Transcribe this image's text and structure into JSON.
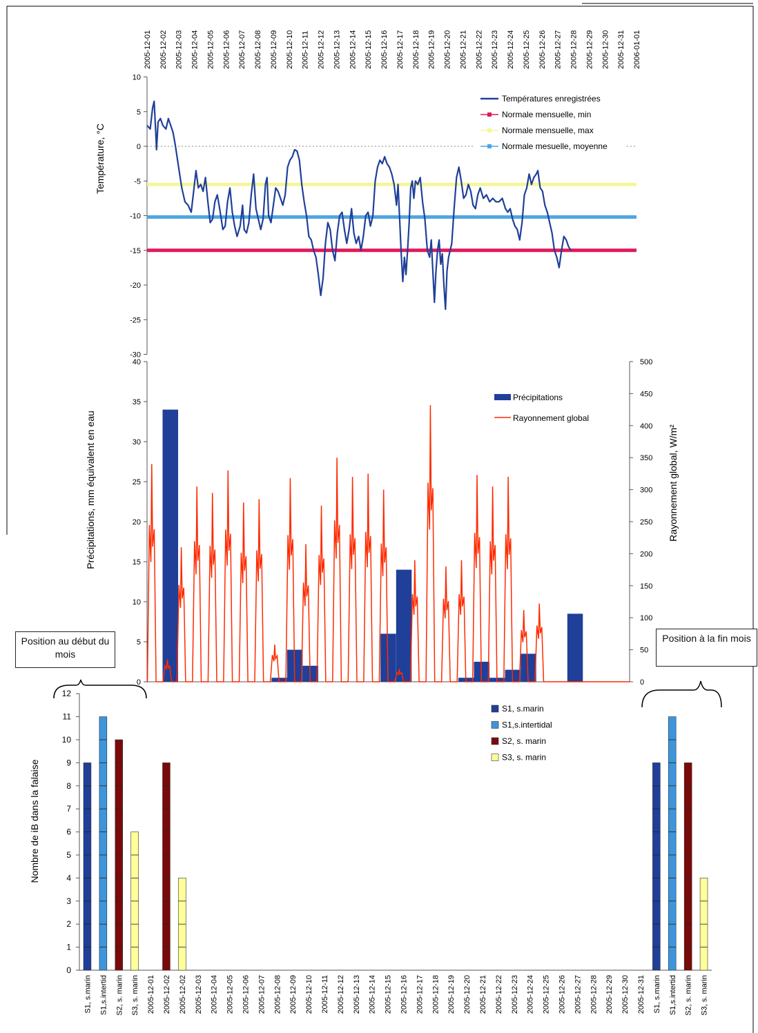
{
  "dates": [
    "2005-12-01",
    "2005-12-02",
    "2005-12-03",
    "2005-12-04",
    "2005-12-05",
    "2005-12-06",
    "2005-12-07",
    "2005-12-08",
    "2005-12-09",
    "2005-12-10",
    "2005-12-11",
    "2005-12-12",
    "2005-12-13",
    "2005-12-14",
    "2005-12-15",
    "2005-12-16",
    "2005-12-17",
    "2005-12-18",
    "2005-12-19",
    "2005-12-20",
    "2005-12-21",
    "2005-12-22",
    "2005-12-23",
    "2005-12-24",
    "2005-12-25",
    "2005-12-26",
    "2005-12-27",
    "2005-12-28",
    "2005-12-29",
    "2005-12-30",
    "2005-12-31",
    "2006-01-01"
  ],
  "callouts": {
    "start": "Position au début du mois",
    "end": "Position à la fin mois"
  },
  "chart_data": [
    {
      "type": "line",
      "ylabel": "Température, °C",
      "ylim": [
        -30,
        10
      ],
      "yticks": [
        10,
        5,
        0,
        -5,
        -10,
        -15,
        -20,
        -25,
        -30
      ],
      "legend_position": "top-right",
      "series": [
        {
          "name": "Températures enregistrées",
          "color": "#1f3f99",
          "points": [
            [
              0.0,
              3.0
            ],
            [
              0.2,
              2.5
            ],
            [
              0.35,
              5.5
            ],
            [
              0.45,
              6.5
            ],
            [
              0.55,
              2.0
            ],
            [
              0.6,
              -0.5
            ],
            [
              0.7,
              3.5
            ],
            [
              0.85,
              4.0
            ],
            [
              1.0,
              3.0
            ],
            [
              1.2,
              2.5
            ],
            [
              1.35,
              4.0
            ],
            [
              1.5,
              3.0
            ],
            [
              1.65,
              2.0
            ],
            [
              1.8,
              0.0
            ],
            [
              2.0,
              -3.0
            ],
            [
              2.2,
              -6.0
            ],
            [
              2.4,
              -8.0
            ],
            [
              2.6,
              -8.5
            ],
            [
              2.8,
              -9.5
            ],
            [
              2.95,
              -6.5
            ],
            [
              3.1,
              -3.5
            ],
            [
              3.25,
              -6.0
            ],
            [
              3.4,
              -5.5
            ],
            [
              3.55,
              -6.5
            ],
            [
              3.7,
              -4.5
            ],
            [
              3.85,
              -8.0
            ],
            [
              4.0,
              -11.0
            ],
            [
              4.15,
              -10.5
            ],
            [
              4.3,
              -8.0
            ],
            [
              4.45,
              -7.0
            ],
            [
              4.6,
              -9.0
            ],
            [
              4.8,
              -12.0
            ],
            [
              4.95,
              -11.5
            ],
            [
              5.1,
              -8.0
            ],
            [
              5.25,
              -6.0
            ],
            [
              5.4,
              -9.5
            ],
            [
              5.55,
              -11.5
            ],
            [
              5.7,
              -13.0
            ],
            [
              5.9,
              -11.5
            ],
            [
              6.05,
              -8.5
            ],
            [
              6.15,
              -12.0
            ],
            [
              6.3,
              -12.5
            ],
            [
              6.45,
              -11.0
            ],
            [
              6.6,
              -7.0
            ],
            [
              6.75,
              -4.0
            ],
            [
              6.9,
              -9.0
            ],
            [
              7.05,
              -10.5
            ],
            [
              7.2,
              -12.0
            ],
            [
              7.35,
              -10.5
            ],
            [
              7.5,
              -5.5
            ],
            [
              7.6,
              -4.5
            ],
            [
              7.7,
              -10.0
            ],
            [
              7.85,
              -11.0
            ],
            [
              8.0,
              -8.5
            ],
            [
              8.15,
              -6.0
            ],
            [
              8.3,
              -6.5
            ],
            [
              8.45,
              -7.5
            ],
            [
              8.6,
              -8.5
            ],
            [
              8.75,
              -7.0
            ],
            [
              8.9,
              -3.0
            ],
            [
              9.05,
              -2.0
            ],
            [
              9.2,
              -1.5
            ],
            [
              9.35,
              -0.5
            ],
            [
              9.5,
              -0.7
            ],
            [
              9.65,
              -2.0
            ],
            [
              9.8,
              -5.5
            ],
            [
              9.95,
              -8.0
            ],
            [
              10.1,
              -10.0
            ],
            [
              10.25,
              -13.0
            ],
            [
              10.4,
              -13.5
            ],
            [
              10.55,
              -15.0
            ],
            [
              10.7,
              -16.0
            ],
            [
              10.85,
              -18.5
            ],
            [
              11.0,
              -21.5
            ],
            [
              11.15,
              -19.0
            ],
            [
              11.3,
              -14.0
            ],
            [
              11.45,
              -11.0
            ],
            [
              11.6,
              -12.0
            ],
            [
              11.75,
              -15.0
            ],
            [
              11.9,
              -16.5
            ],
            [
              12.05,
              -12.5
            ],
            [
              12.2,
              -10.0
            ],
            [
              12.35,
              -9.5
            ],
            [
              12.5,
              -12.0
            ],
            [
              12.65,
              -14.0
            ],
            [
              12.8,
              -12.0
            ],
            [
              12.95,
              -9.0
            ],
            [
              13.1,
              -12.5
            ],
            [
              13.25,
              -14.0
            ],
            [
              13.4,
              -13.0
            ],
            [
              13.55,
              -15.0
            ],
            [
              13.7,
              -13.0
            ],
            [
              13.85,
              -10.0
            ],
            [
              14.0,
              -9.5
            ],
            [
              14.15,
              -11.5
            ],
            [
              14.3,
              -10.0
            ],
            [
              14.45,
              -5.0
            ],
            [
              14.6,
              -3.0
            ],
            [
              14.75,
              -2.0
            ],
            [
              14.9,
              -2.5
            ],
            [
              15.05,
              -1.5
            ],
            [
              15.2,
              -2.5
            ],
            [
              15.35,
              -3.0
            ],
            [
              15.5,
              -4.0
            ],
            [
              15.65,
              -5.5
            ],
            [
              15.8,
              -8.5
            ],
            [
              15.9,
              -5.5
            ],
            [
              16.0,
              -10.5
            ],
            [
              16.1,
              -15.5
            ],
            [
              16.2,
              -19.5
            ],
            [
              16.3,
              -16.0
            ],
            [
              16.4,
              -18.5
            ],
            [
              16.5,
              -15.0
            ],
            [
              16.6,
              -11.0
            ],
            [
              16.7,
              -6.0
            ],
            [
              16.8,
              -5.0
            ],
            [
              16.9,
              -7.5
            ],
            [
              17.0,
              -5.0
            ],
            [
              17.15,
              -5.5
            ],
            [
              17.3,
              -4.5
            ],
            [
              17.45,
              -8.0
            ],
            [
              17.6,
              -10.5
            ],
            [
              17.75,
              -15.0
            ],
            [
              17.9,
              -16.0
            ],
            [
              18.0,
              -13.5
            ],
            [
              18.1,
              -18.0
            ],
            [
              18.2,
              -22.5
            ],
            [
              18.3,
              -18.0
            ],
            [
              18.4,
              -15.0
            ],
            [
              18.5,
              -13.5
            ],
            [
              18.6,
              -17.0
            ],
            [
              18.7,
              -15.5
            ],
            [
              18.8,
              -20.0
            ],
            [
              18.9,
              -23.5
            ],
            [
              19.0,
              -18.0
            ],
            [
              19.1,
              -16.0
            ],
            [
              19.2,
              -15.0
            ],
            [
              19.3,
              -14.0
            ],
            [
              19.45,
              -9.0
            ],
            [
              19.6,
              -4.5
            ],
            [
              19.75,
              -3.0
            ],
            [
              19.9,
              -5.0
            ],
            [
              20.05,
              -7.5
            ],
            [
              20.2,
              -7.0
            ],
            [
              20.35,
              -5.5
            ],
            [
              20.5,
              -6.5
            ],
            [
              20.65,
              -8.5
            ],
            [
              20.8,
              -9.0
            ],
            [
              20.95,
              -7.0
            ],
            [
              21.1,
              -6.0
            ],
            [
              21.3,
              -7.5
            ],
            [
              21.5,
              -7.0
            ],
            [
              21.7,
              -8.0
            ],
            [
              21.9,
              -7.5
            ],
            [
              22.1,
              -8.0
            ],
            [
              22.3,
              -8.0
            ],
            [
              22.5,
              -7.5
            ],
            [
              22.7,
              -9.0
            ],
            [
              22.85,
              -9.5
            ],
            [
              23.0,
              -9.0
            ],
            [
              23.15,
              -10.5
            ],
            [
              23.3,
              -11.5
            ],
            [
              23.45,
              -12.0
            ],
            [
              23.6,
              -13.5
            ],
            [
              23.75,
              -11.0
            ],
            [
              23.9,
              -7.0
            ],
            [
              24.05,
              -6.0
            ],
            [
              24.2,
              -4.0
            ],
            [
              24.35,
              -5.5
            ],
            [
              24.5,
              -4.5
            ],
            [
              24.65,
              -4.0
            ],
            [
              24.75,
              -3.5
            ],
            [
              24.9,
              -6.0
            ],
            [
              25.05,
              -6.5
            ],
            [
              25.2,
              -8.5
            ],
            [
              25.35,
              -9.5
            ],
            [
              25.5,
              -11.0
            ],
            [
              25.65,
              -12.5
            ],
            [
              25.8,
              -15.0
            ],
            [
              25.95,
              -16.0
            ],
            [
              26.1,
              -17.5
            ],
            [
              26.25,
              -15.0
            ],
            [
              26.4,
              -13.0
            ],
            [
              26.55,
              -13.5
            ],
            [
              26.7,
              -14.5
            ],
            [
              26.85,
              -15.0
            ]
          ]
        },
        {
          "name": "Normale mensuelle, min",
          "color": "#e0195c",
          "value": -15
        },
        {
          "name": "Normale mensuelle, max",
          "color": "#f5f59a",
          "value": -5.5
        },
        {
          "name": "Normale mesuelle, moyenne",
          "color": "#4fa6e0",
          "value": -10.2
        }
      ]
    },
    {
      "type": "bar",
      "ylabel": "Précipitations, mm équivalent en eau",
      "y2label": "Rayonnement global, W/m²",
      "ylim": [
        0,
        40
      ],
      "y2lim": [
        0,
        500
      ],
      "yticks": [
        40,
        35,
        30,
        25,
        20,
        15,
        10,
        5,
        0
      ],
      "y2ticks": [
        500,
        450,
        400,
        350,
        300,
        250,
        200,
        150,
        100,
        50,
        0
      ],
      "legend_position": "top-right",
      "series": [
        {
          "name": "Précipitations",
          "color": "#1f3f99",
          "bars": [
            [
              1,
              34
            ],
            [
              8,
              0.5
            ],
            [
              9,
              4
            ],
            [
              10,
              2
            ],
            [
              15,
              6
            ],
            [
              16,
              14
            ],
            [
              20,
              0.5
            ],
            [
              21,
              2.5
            ],
            [
              22,
              0.5
            ],
            [
              23,
              1.5
            ],
            [
              24,
              3.5
            ],
            [
              27,
              8.5
            ]
          ]
        },
        {
          "name": "Rayonnement global",
          "color": "#ff2a00",
          "peaks": [
            [
              0.3,
              340
            ],
            [
              1.3,
              35
            ],
            [
              2.2,
              210
            ],
            [
              3.2,
              305
            ],
            [
              4.2,
              295
            ],
            [
              5.2,
              330
            ],
            [
              6.2,
              280
            ],
            [
              7.2,
              285
            ],
            [
              8.2,
              58
            ],
            [
              9.2,
              318
            ],
            [
              10.2,
              215
            ],
            [
              11.2,
              275
            ],
            [
              12.2,
              350
            ],
            [
              13.2,
              320
            ],
            [
              14.2,
              325
            ],
            [
              15.2,
              300
            ],
            [
              16.2,
              20
            ],
            [
              17.2,
              190
            ],
            [
              18.2,
              432
            ],
            [
              19.2,
              180
            ],
            [
              20.2,
              190
            ],
            [
              21.2,
              323
            ],
            [
              22.2,
              305
            ],
            [
              23.2,
              320
            ],
            [
              24.2,
              112
            ],
            [
              25.2,
              122
            ]
          ]
        }
      ]
    },
    {
      "type": "bar",
      "ylabel": "Nombre de iB dans la falaise",
      "ylim": [
        0,
        12
      ],
      "yticks": [
        12,
        11,
        10,
        9,
        8,
        7,
        6,
        5,
        4,
        3,
        2,
        1,
        0
      ],
      "categories": [
        "S1, s.marin",
        "S1,s.intertid",
        "S2, s. marin",
        "S3, s. marin",
        "2005-12-01",
        "2005-12-02",
        "2005-12-02",
        "2005-12-03",
        "2005-12-04",
        "2005-12-05",
        "2005-12-06",
        "2005-12-07",
        "2005-12-08",
        "2005-12-09",
        "2005-12-10",
        "2005-12-11",
        "2005-12-12",
        "2005-12-13",
        "2005-12-14",
        "2005-12-15",
        "2005-12-16",
        "2005-12-17",
        "2005-12-18",
        "2005-12-19",
        "2005-12-20",
        "2005-12-21",
        "2005-12-22",
        "2005-12-23",
        "2005-12-24",
        "2005-12-25",
        "2005-12-26",
        "2005-12-27",
        "2005-12-28",
        "2005-12-29",
        "2005-12-30",
        "2005-12-31",
        "S1, s.marin",
        "S1,s.intertid",
        "S2, s. marin",
        "S3, s. marin"
      ],
      "legend_position": "top-right",
      "series": [
        {
          "name": "S1, s.marin",
          "color": "#1f3f99",
          "bars": [
            [
              0,
              9
            ],
            [
              36,
              9
            ]
          ]
        },
        {
          "name": "S1,s.intertidal",
          "color": "#3d95dc",
          "bars": [
            [
              1,
              11
            ],
            [
              37,
              11
            ]
          ]
        },
        {
          "name": "S2, s. marin",
          "color": "#7a0a0a",
          "bars": [
            [
              2,
              10
            ],
            [
              5,
              9
            ],
            [
              38,
              9
            ]
          ]
        },
        {
          "name": "S3, s. marin",
          "color": "#ffff99",
          "bars": [
            [
              3,
              6
            ],
            [
              6,
              4
            ],
            [
              39,
              4
            ]
          ]
        }
      ]
    }
  ]
}
